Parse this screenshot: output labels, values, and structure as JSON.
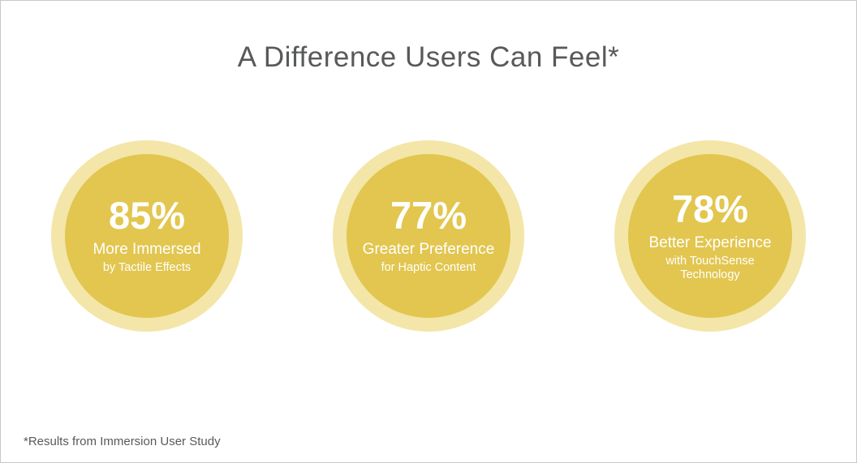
{
  "title": "A Difference Users Can Feel*",
  "footnote": "*Results from Immersion User Study",
  "colors": {
    "circle_inner": "#e2c64f",
    "circle_outer": "#f3e6a8",
    "title_text": "#58595b",
    "stat_text": "#ffffff"
  },
  "stats": [
    {
      "value": "85%",
      "label": "More Immersed",
      "sublabel": "by Tactile Effects"
    },
    {
      "value": "77%",
      "label": "Greater Preference",
      "sublabel": "for Haptic Content"
    },
    {
      "value": "78%",
      "label": "Better Experience",
      "sublabel": "with TouchSense Technology"
    }
  ],
  "chart_data": {
    "type": "table",
    "title": "A Difference Users Can Feel*",
    "categories": [
      "More Immersed by Tactile Effects",
      "Greater Preference for Haptic Content",
      "Better Experience with TouchSense Technology"
    ],
    "values": [
      85,
      77,
      78
    ],
    "unit": "%",
    "annotations": [
      "*Results from Immersion User Study"
    ]
  }
}
